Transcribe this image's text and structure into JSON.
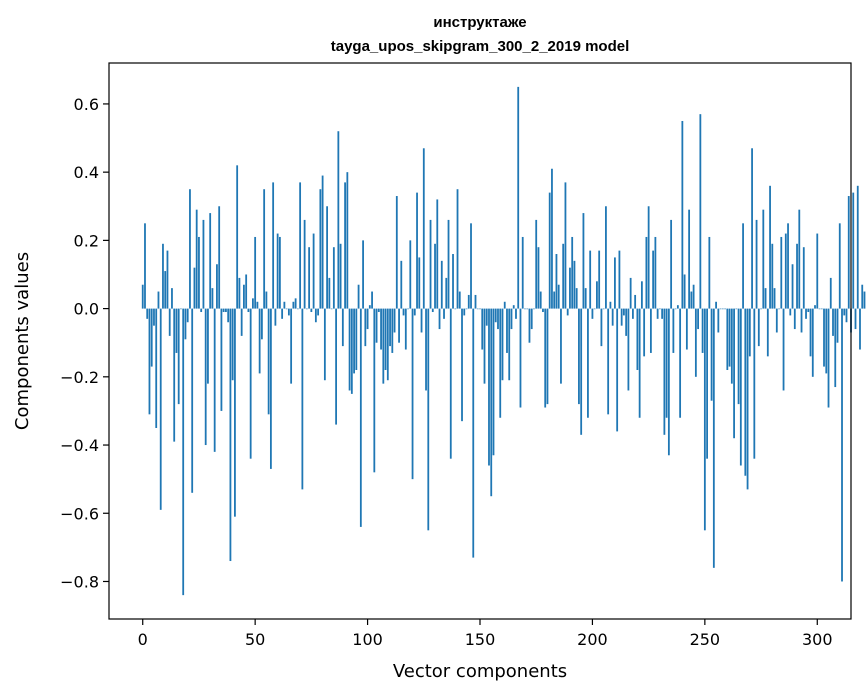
{
  "chart_data": {
    "type": "bar",
    "title": "инструктаже",
    "subtitle": "tayga_upos_skipgram_300_2_2019 model",
    "xlabel": "Vector components",
    "ylabel": "Components values",
    "xlim": [
      -15,
      315
    ],
    "ylim": [
      -0.91,
      0.72
    ],
    "xticks": [
      0,
      50,
      100,
      150,
      200,
      250,
      300
    ],
    "yticks": [
      -0.8,
      -0.6,
      -0.4,
      -0.2,
      0.0,
      0.2,
      0.4,
      0.6
    ],
    "ytick_labels": [
      "−0.8",
      "−0.6",
      "−0.4",
      "−0.2",
      "0.0",
      "0.2",
      "0.4",
      "0.6"
    ],
    "bar_color": "#1f77b4",
    "grid": false,
    "legend": "none",
    "values": [
      0.07,
      0.25,
      -0.03,
      -0.31,
      -0.17,
      -0.05,
      -0.35,
      0.05,
      -0.59,
      0.19,
      0.11,
      0.17,
      -0.08,
      0.06,
      -0.39,
      -0.13,
      -0.28,
      0.0,
      -0.84,
      -0.09,
      -0.04,
      0.35,
      -0.54,
      0.12,
      0.29,
      0.21,
      -0.01,
      0.26,
      -0.4,
      -0.22,
      0.28,
      0.06,
      -0.42,
      0.13,
      0.3,
      -0.3,
      -0.01,
      -0.01,
      -0.04,
      -0.74,
      -0.21,
      -0.61,
      0.42,
      0.09,
      -0.08,
      0.07,
      0.1,
      -0.01,
      -0.44,
      0.03,
      0.21,
      0.02,
      -0.19,
      -0.09,
      0.35,
      0.05,
      -0.31,
      -0.47,
      0.37,
      -0.05,
      0.22,
      0.21,
      -0.03,
      0.02,
      0.0,
      -0.02,
      -0.22,
      0.02,
      0.03,
      0.0,
      0.37,
      -0.53,
      0.26,
      0.0,
      0.18,
      -0.01,
      0.22,
      -0.04,
      -0.02,
      0.35,
      0.39,
      -0.21,
      0.3,
      0.09,
      0.0,
      0.18,
      -0.34,
      0.52,
      0.19,
      -0.11,
      0.37,
      0.4,
      -0.24,
      -0.25,
      -0.19,
      -0.18,
      0.07,
      -0.64,
      0.2,
      -0.11,
      -0.06,
      0.01,
      0.05,
      -0.48,
      -0.1,
      -0.01,
      -0.12,
      -0.22,
      -0.18,
      -0.21,
      -0.11,
      -0.13,
      -0.07,
      0.33,
      -0.1,
      0.14,
      -0.02,
      -0.12,
      0.0,
      0.2,
      -0.5,
      -0.02,
      0.34,
      0.15,
      -0.07,
      0.47,
      -0.24,
      -0.65,
      0.26,
      -0.01,
      0.19,
      0.32,
      -0.06,
      0.14,
      -0.03,
      0.09,
      0.26,
      -0.44,
      0.16,
      0.0,
      0.35,
      0.05,
      -0.33,
      -0.02,
      0.0,
      0.04,
      0.25,
      -0.73,
      0.04,
      0.0,
      0.0,
      -0.12,
      -0.22,
      -0.05,
      -0.46,
      -0.55,
      -0.43,
      -0.04,
      -0.06,
      -0.32,
      -0.21,
      0.02,
      -0.13,
      -0.21,
      -0.06,
      0.01,
      -0.03,
      0.65,
      -0.29,
      0.21,
      0.0,
      0.0,
      -0.1,
      -0.06,
      0.0,
      0.26,
      0.18,
      0.05,
      -0.01,
      -0.29,
      -0.28,
      0.34,
      0.41,
      0.05,
      0.16,
      0.07,
      -0.22,
      0.19,
      0.37,
      -0.02,
      0.12,
      0.21,
      0.14,
      0.06,
      -0.28,
      -0.37,
      0.28,
      0.06,
      -0.32,
      0.17,
      -0.03,
      0.0,
      0.08,
      0.17,
      -0.11,
      0.0,
      0.3,
      -0.31,
      0.02,
      -0.05,
      0.15,
      -0.36,
      0.17,
      -0.05,
      -0.02,
      -0.08,
      -0.24,
      0.09,
      -0.03,
      0.04,
      -0.18,
      -0.32,
      0.08,
      -0.14,
      0.21,
      0.3,
      -0.13,
      0.17,
      0.21,
      -0.03,
      0.0,
      -0.03,
      -0.37,
      -0.32,
      -0.43,
      0.26,
      -0.13,
      0.0,
      0.01,
      -0.32,
      0.55,
      0.1,
      -0.12,
      0.29,
      0.05,
      0.07,
      -0.2,
      -0.06,
      0.57,
      -0.13,
      -0.65,
      -0.44,
      0.21,
      -0.27,
      -0.76,
      0.02,
      -0.07,
      0.0,
      0.0,
      0.0,
      -0.18,
      -0.17,
      -0.22,
      -0.38,
      0.0,
      -0.28,
      -0.46,
      0.25,
      -0.49,
      -0.53,
      -0.14,
      0.47,
      -0.44,
      0.26,
      -0.11,
      0.0,
      0.29,
      0.06,
      -0.14,
      0.36,
      0.19,
      0.06,
      -0.07,
      0.0,
      0.21,
      -0.24,
      0.22,
      0.25,
      -0.02,
      0.13,
      -0.06,
      0.19,
      0.29,
      -0.07,
      0.18,
      -0.03,
      -0.01,
      -0.14,
      -0.2,
      0.01,
      0.22,
      0.0,
      0.0,
      -0.17,
      -0.19,
      -0.29,
      0.09,
      -0.08,
      -0.23,
      -0.1,
      0.25,
      -0.8,
      -0.02,
      -0.04,
      0.33,
      -0.07,
      0.34,
      -0.06,
      0.36,
      -0.12,
      0.07,
      0.05
    ]
  }
}
